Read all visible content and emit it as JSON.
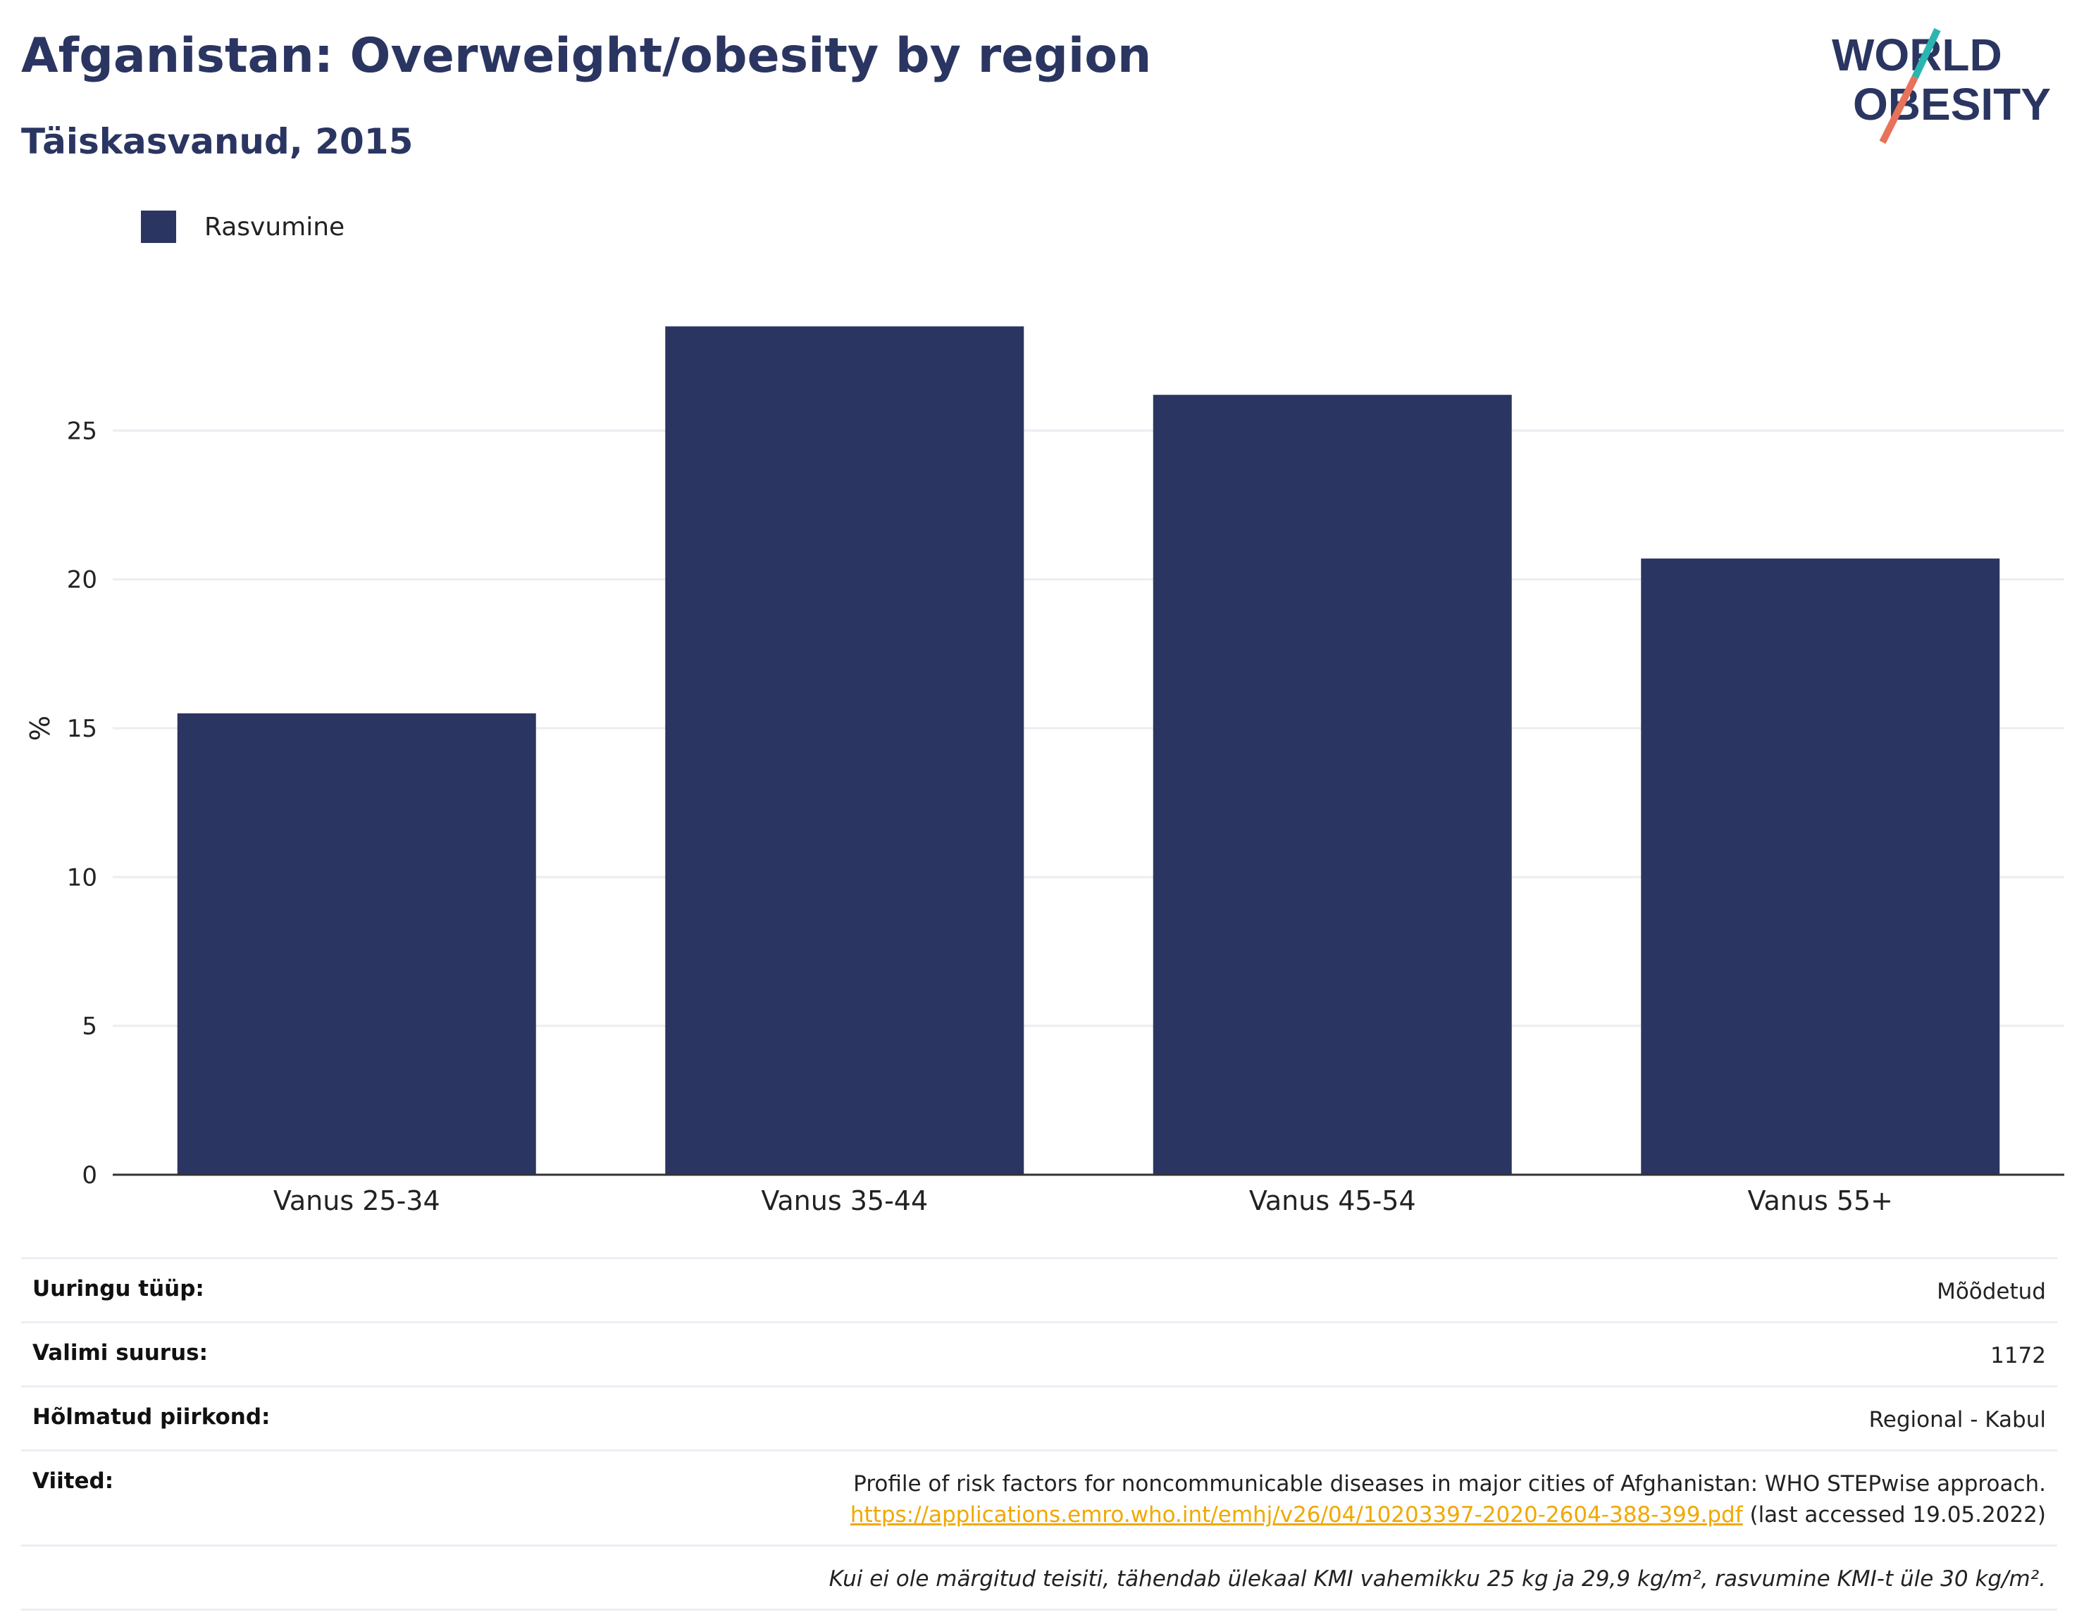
{
  "header": {
    "title": "Afganistan: Overweight/obesity by region",
    "subtitle": "Täiskasvanud, 2015"
  },
  "logo": {
    "line1": "WORLD",
    "line2": "OBESITY",
    "colors": {
      "navy": "#2b3561",
      "teal": "#2bb5b0",
      "coral": "#e8735a"
    }
  },
  "chart_data": {
    "type": "bar",
    "categories": [
      "Vanus 25-34",
      "Vanus 35-44",
      "Vanus 45-54",
      "Vanus 55+"
    ],
    "series": [
      {
        "name": "Rasvumine",
        "values": [
          15.5,
          28.5,
          26.2,
          20.7
        ],
        "color": "#2b3561"
      }
    ],
    "xlabel": "",
    "ylabel": "%",
    "ylim": [
      0,
      30
    ],
    "yticks": [
      0,
      5,
      10,
      15,
      20,
      25
    ],
    "grid": true,
    "legend": "top-left"
  },
  "meta": {
    "survey_type": {
      "label": "Uuringu tüüp:",
      "value": "Mõõdetud"
    },
    "sample_size": {
      "label": "Valimi suurus:",
      "value": "1172"
    },
    "region": {
      "label": "Hõlmatud piirkond:",
      "value": "Regional - Kabul"
    },
    "references": {
      "label": "Viited:",
      "text": "Profile of risk factors for noncommunicable diseases in major cities of Afghanistan: WHO STEPwise approach.",
      "link": "https://applications.emro.who.int/emhj/v26/04/10203397-2020-2604-388-399.pdf",
      "accessed": " (last accessed 19.05.2022)"
    },
    "note": "Kui ei ole märgitud teisiti, tähendab ülekaal KMI vahemikku 25 kg ja 29,9 kg/m², rasvumine KMI-t üle 30 kg/m²."
  }
}
